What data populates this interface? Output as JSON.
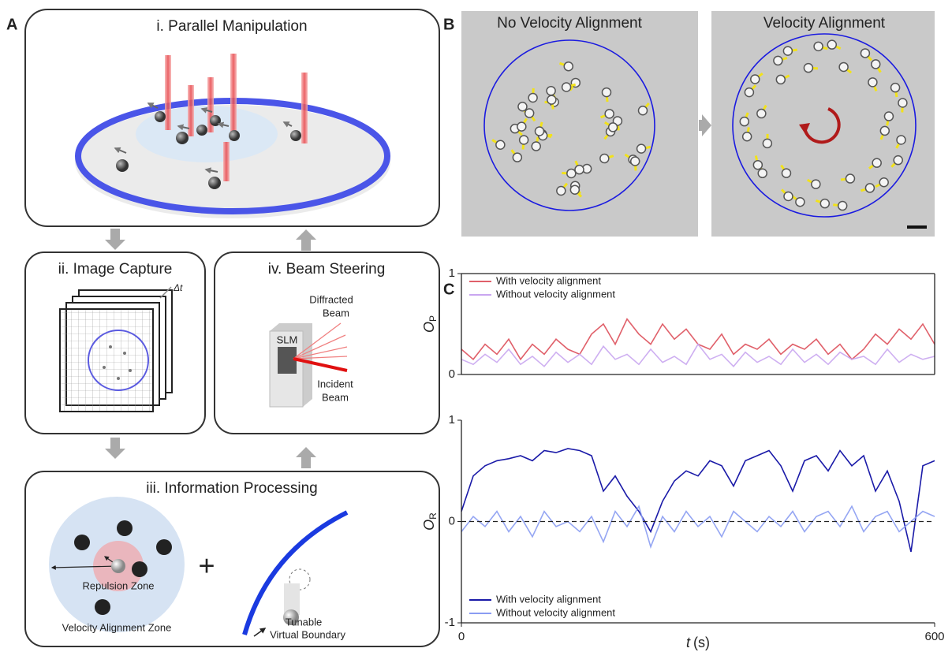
{
  "panel_a": {
    "label": "A",
    "manipulation": {
      "title": "i. Parallel Manipulation"
    },
    "capture": {
      "title": "ii. Image Capture",
      "delta": "Δt"
    },
    "steering": {
      "title": "iv. Beam Steering",
      "slm": "SLM",
      "diffracted": [
        "Diffracted",
        "Beam"
      ],
      "incident": [
        "Incident",
        "Beam"
      ]
    },
    "processing": {
      "title": "iii. Information Processing",
      "repulsion": "Repulsion Zone",
      "alignment": "Velocity Alignment Zone",
      "plus": "+",
      "boundary": [
        "Tunable",
        "Virtual Boundary"
      ]
    }
  },
  "panel_b": {
    "label": "B",
    "left_title": "No Velocity Alignment",
    "right_title": "Velocity Alignment"
  },
  "panel_c": {
    "label": "C"
  },
  "chart_data": [
    {
      "type": "line",
      "y_label": "O",
      "y_label_sub": "P",
      "xlim": [
        0,
        600
      ],
      "ylim": [
        0,
        1
      ],
      "yticks": [
        0,
        1
      ],
      "legend": "upper left",
      "x": [
        0,
        15,
        30,
        45,
        60,
        75,
        90,
        105,
        120,
        135,
        150,
        165,
        180,
        195,
        210,
        225,
        240,
        255,
        270,
        285,
        300,
        315,
        330,
        345,
        360,
        375,
        390,
        405,
        420,
        435,
        450,
        465,
        480,
        495,
        510,
        525,
        540,
        555,
        570,
        585,
        600
      ],
      "series": [
        {
          "name": "With velocity alignment",
          "color": "#e0606a",
          "values": [
            0.25,
            0.15,
            0.3,
            0.2,
            0.35,
            0.15,
            0.3,
            0.2,
            0.35,
            0.25,
            0.2,
            0.4,
            0.5,
            0.3,
            0.55,
            0.4,
            0.3,
            0.5,
            0.35,
            0.45,
            0.3,
            0.25,
            0.4,
            0.2,
            0.3,
            0.25,
            0.35,
            0.2,
            0.3,
            0.25,
            0.35,
            0.2,
            0.3,
            0.15,
            0.25,
            0.4,
            0.3,
            0.45,
            0.35,
            0.5,
            0.3
          ]
        },
        {
          "name": "Without velocity alignment",
          "color": "#c9a6f0",
          "values": [
            0.15,
            0.1,
            0.2,
            0.12,
            0.25,
            0.1,
            0.18,
            0.08,
            0.22,
            0.12,
            0.2,
            0.1,
            0.28,
            0.15,
            0.2,
            0.1,
            0.25,
            0.12,
            0.18,
            0.1,
            0.3,
            0.15,
            0.2,
            0.08,
            0.22,
            0.12,
            0.18,
            0.1,
            0.25,
            0.12,
            0.2,
            0.1,
            0.22,
            0.15,
            0.18,
            0.1,
            0.25,
            0.12,
            0.2,
            0.15,
            0.18
          ]
        }
      ]
    },
    {
      "type": "line",
      "y_label": "O",
      "y_label_sub": "R",
      "x_label_symbol": "t",
      "x_label_unit": "(s)",
      "xlim": [
        0,
        600
      ],
      "xticks": [
        0,
        600
      ],
      "ylim": [
        -1,
        1
      ],
      "yticks": [
        -1,
        0,
        1
      ],
      "zero_line": true,
      "legend": "lower left",
      "x": [
        0,
        15,
        30,
        45,
        60,
        75,
        90,
        105,
        120,
        135,
        150,
        165,
        180,
        195,
        210,
        225,
        240,
        255,
        270,
        285,
        300,
        315,
        330,
        345,
        360,
        375,
        390,
        405,
        420,
        435,
        450,
        465,
        480,
        495,
        510,
        525,
        540,
        555,
        570,
        585,
        600
      ],
      "series": [
        {
          "name": "With velocity alignment",
          "color": "#1a1aa8",
          "values": [
            0.1,
            0.45,
            0.55,
            0.6,
            0.62,
            0.65,
            0.6,
            0.7,
            0.68,
            0.72,
            0.7,
            0.65,
            0.3,
            0.45,
            0.25,
            0.1,
            -0.1,
            0.2,
            0.4,
            0.5,
            0.45,
            0.6,
            0.55,
            0.35,
            0.6,
            0.65,
            0.7,
            0.55,
            0.3,
            0.6,
            0.65,
            0.5,
            0.7,
            0.55,
            0.65,
            0.3,
            0.5,
            0.2,
            -0.3,
            0.55,
            0.6
          ]
        },
        {
          "name": "Without velocity alignment",
          "color": "#8a9cf2",
          "values": [
            -0.1,
            0.05,
            -0.05,
            0.1,
            -0.1,
            0.05,
            -0.15,
            0.1,
            -0.05,
            0,
            -0.1,
            0.05,
            -0.2,
            0.1,
            -0.05,
            0.15,
            -0.25,
            0.05,
            -0.1,
            0.1,
            -0.05,
            0.05,
            -0.15,
            0.1,
            0,
            -0.1,
            0.05,
            -0.05,
            0.1,
            -0.1,
            0.05,
            0.1,
            -0.05,
            0.15,
            -0.1,
            0.05,
            0.1,
            -0.1,
            0,
            0.1,
            0.05
          ]
        }
      ]
    }
  ]
}
